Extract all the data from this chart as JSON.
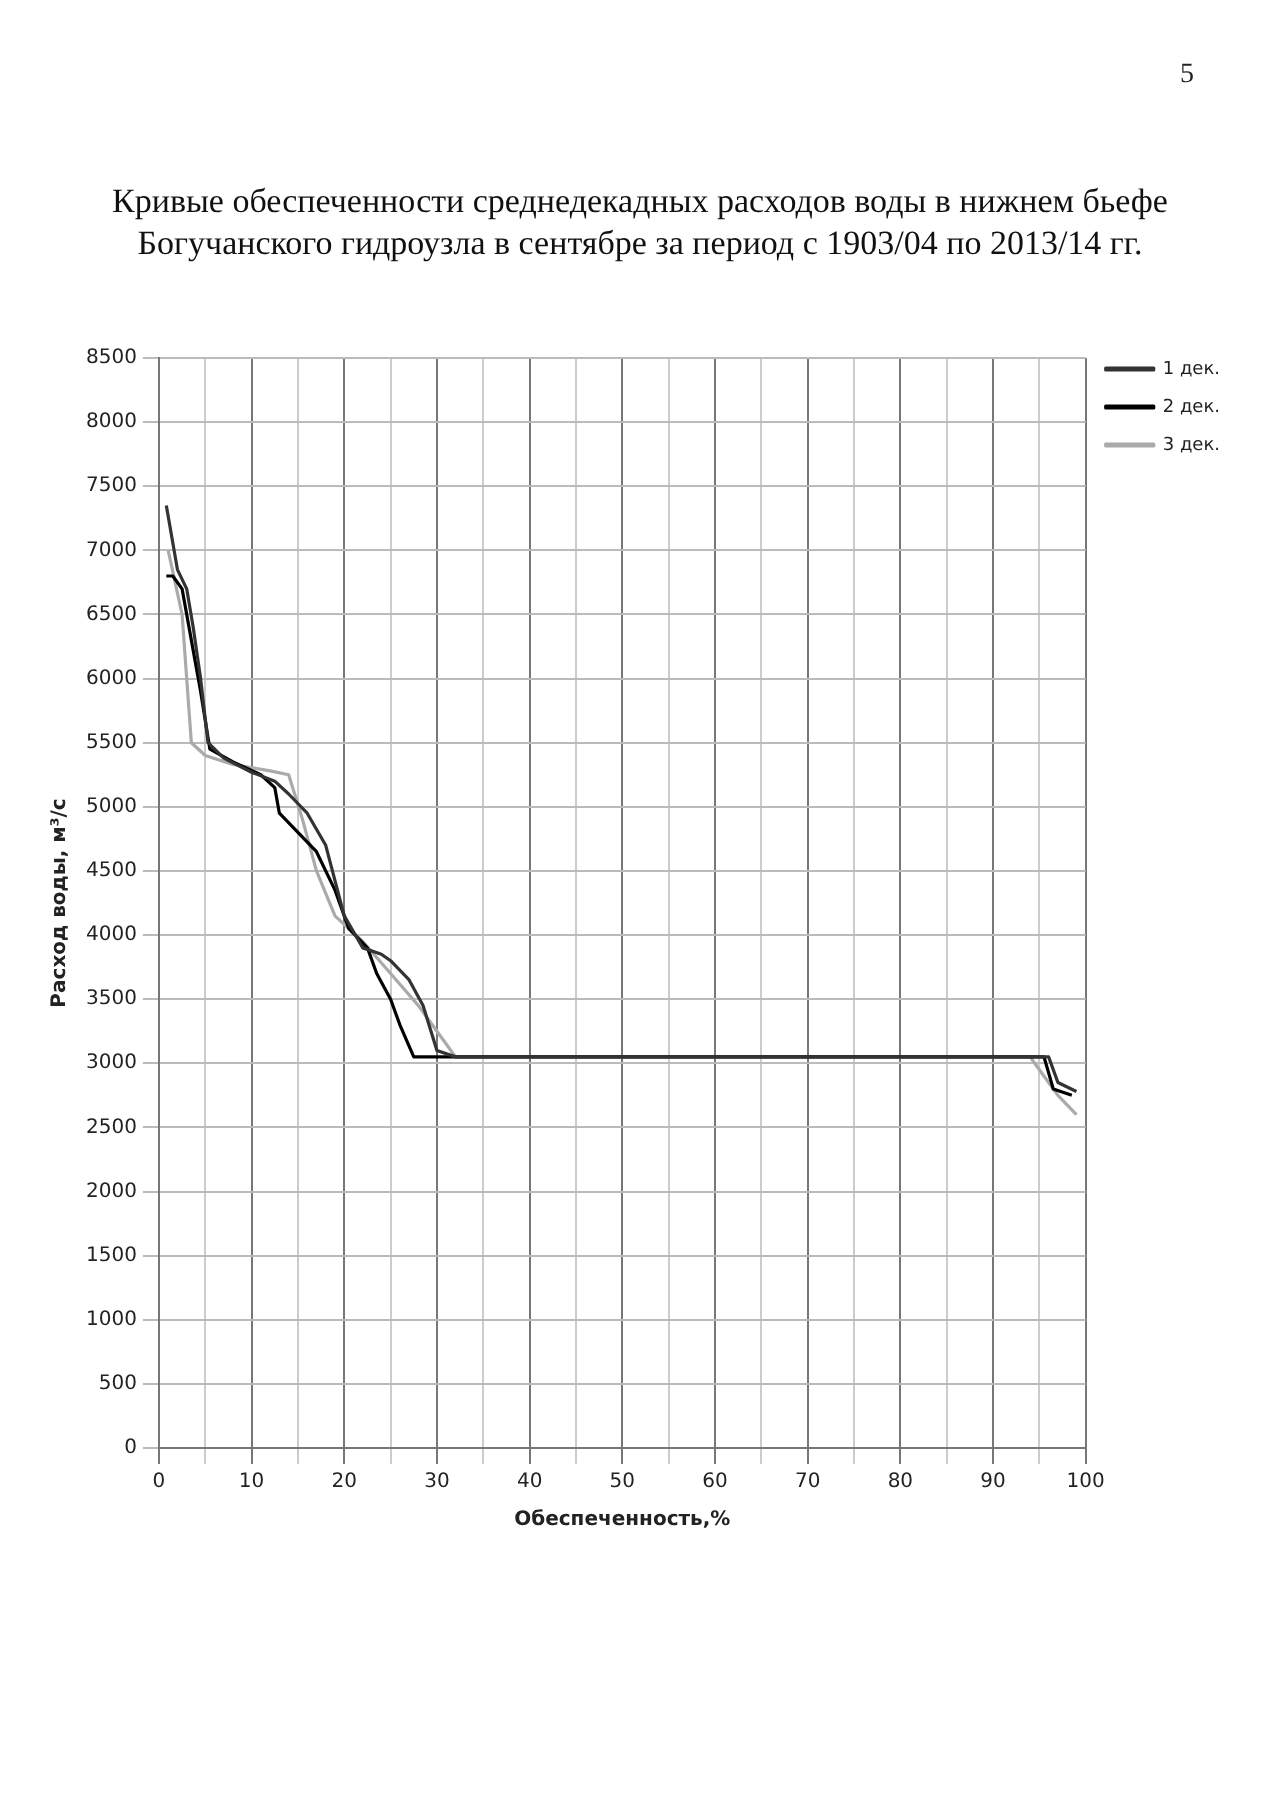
{
  "chart_data": {
    "type": "line",
    "title": "Кривые обеспеченности среднедекадных расходов воды в нижнем бьефе Богучанского гидроузла в сентябре за период с 1903/04 по 2013/14 гг.",
    "xlabel": "Обеспеченность,%",
    "ylabel": "Расход воды, м³/с",
    "series": [
      {
        "name": "1 дек.",
        "color": "#333333",
        "x": [
          0.8,
          2,
          3,
          3.7,
          4.5,
          5.3,
          7,
          10,
          12.5,
          14,
          16,
          18,
          20,
          22,
          24,
          25,
          27,
          28.5,
          30,
          32,
          94,
          96,
          97,
          99
        ],
        "values": [
          7350,
          6850,
          6700,
          6400,
          6000,
          5500,
          5380,
          5270,
          5200,
          5100,
          4950,
          4700,
          4150,
          3900,
          3850,
          3800,
          3650,
          3450,
          3100,
          3050,
          3050,
          3050,
          2850,
          2780
        ]
      },
      {
        "name": "2 дек.",
        "color": "#000000",
        "x": [
          0.8,
          1.5,
          2.5,
          3.5,
          4.5,
          5.5,
          8,
          11,
          12.5,
          13,
          15,
          17,
          19,
          20.5,
          22.5,
          23.5,
          25,
          26,
          27.5,
          30,
          94,
          95.5,
          96.5,
          98.5
        ],
        "values": [
          6800,
          6800,
          6700,
          6300,
          5900,
          5450,
          5350,
          5250,
          5150,
          4950,
          4800,
          4650,
          4350,
          4050,
          3900,
          3700,
          3500,
          3300,
          3050,
          3050,
          3050,
          3050,
          2800,
          2750
        ]
      },
      {
        "name": "3 дек.",
        "color": "#aaaaaa",
        "x": [
          1,
          2.5,
          3.5,
          5,
          8,
          12,
          14,
          15.5,
          17,
          19,
          22,
          25,
          28,
          30,
          32,
          94,
          95,
          97,
          99
        ],
        "values": [
          7000,
          6500,
          5500,
          5400,
          5330,
          5280,
          5250,
          4900,
          4500,
          4150,
          3950,
          3700,
          3450,
          3250,
          3050,
          3050,
          2950,
          2750,
          2600
        ]
      }
    ],
    "xlim": [
      0,
      100
    ],
    "xticks": [
      0,
      {
        "value": 5,
        "label": null
      },
      10,
      {
        "value": 15,
        "label": null
      },
      20,
      {
        "value": 25,
        "label": null
      },
      30,
      {
        "value": 35,
        "label": null
      },
      40,
      {
        "value": 45,
        "label": null
      },
      50,
      {
        "value": 55,
        "label": null
      },
      60,
      {
        "value": 65,
        "label": null
      },
      70,
      {
        "value": 75,
        "label": null
      },
      80,
      {
        "value": 85,
        "label": null
      },
      90,
      {
        "value": 95,
        "label": null
      },
      100
    ],
    "ylim": [
      0,
      8500
    ],
    "yticks": [
      0,
      500,
      1000,
      1500,
      2000,
      2500,
      3000,
      3500,
      4000,
      4500,
      5000,
      5500,
      6000,
      6500,
      7000,
      7500,
      8000,
      8500
    ],
    "grid": true,
    "legend": "right",
    "marker": "none",
    "line_style": "solid",
    "annotations": [
      "5"
    ]
  }
}
